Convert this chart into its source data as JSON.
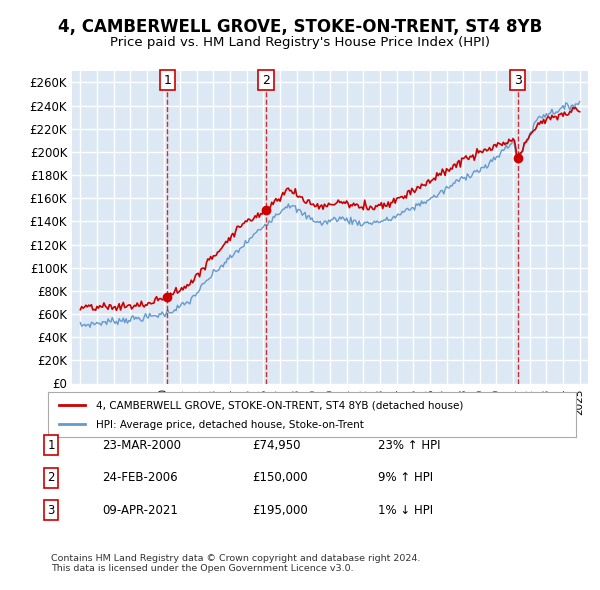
{
  "title": "4, CAMBERWELL GROVE, STOKE-ON-TRENT, ST4 8YB",
  "subtitle": "Price paid vs. HM Land Registry's House Price Index (HPI)",
  "ylabel": "",
  "background_color": "#ffffff",
  "plot_bg_color": "#dce9f5",
  "grid_color": "#ffffff",
  "red_line_color": "#cc0000",
  "blue_line_color": "#6699cc",
  "sale_marker_color": "#cc0000",
  "sale_line_color": "#cc0000",
  "sale_points": [
    {
      "label": "1",
      "year": 2000.23,
      "price": 74950
    },
    {
      "label": "2",
      "year": 2006.15,
      "price": 150000
    },
    {
      "label": "3",
      "year": 2021.27,
      "price": 195000
    }
  ],
  "annotations": [
    {
      "num": "1",
      "date": "23-MAR-2000",
      "price": "£74,950",
      "pct": "23%",
      "dir": "↑"
    },
    {
      "num": "2",
      "date": "24-FEB-2006",
      "price": "£150,000",
      "pct": "9%",
      "dir": "↑"
    },
    {
      "num": "3",
      "date": "09-APR-2021",
      "price": "£195,000",
      "pct": "1%",
      "dir": "↓"
    }
  ],
  "legend_line1": "4, CAMBERWELL GROVE, STOKE-ON-TRENT, ST4 8YB (detached house)",
  "legend_line2": "HPI: Average price, detached house, Stoke-on-Trent",
  "footer": "Contains HM Land Registry data © Crown copyright and database right 2024.\nThis data is licensed under the Open Government Licence v3.0.",
  "ylim": [
    0,
    270000
  ],
  "yticks": [
    0,
    20000,
    40000,
    60000,
    80000,
    100000,
    120000,
    140000,
    160000,
    180000,
    200000,
    220000,
    240000,
    260000
  ],
  "xmin": 1994.5,
  "xmax": 2025.5
}
